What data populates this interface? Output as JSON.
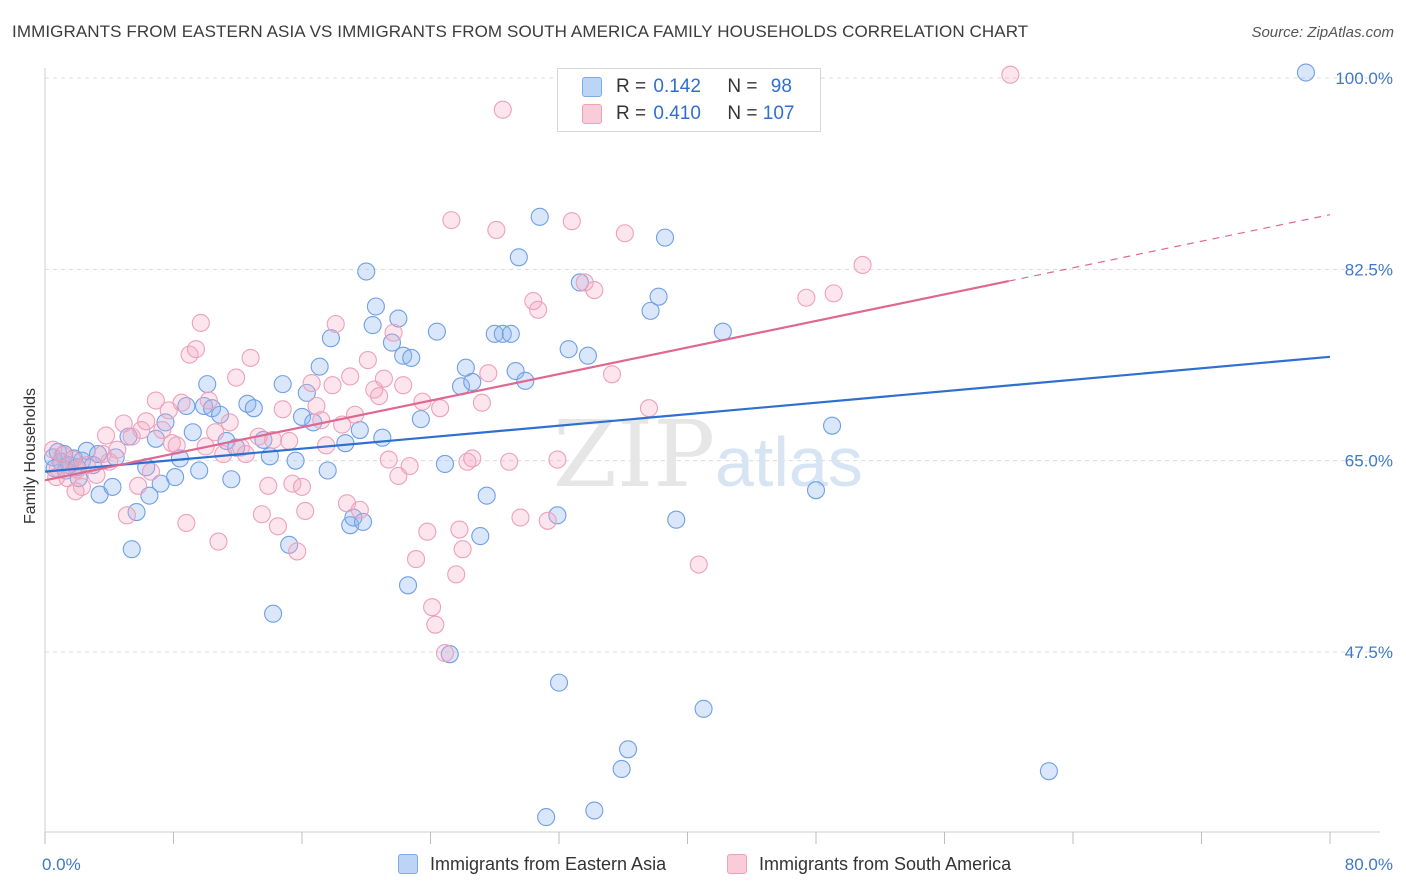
{
  "header": {
    "title": "IMMIGRANTS FROM EASTERN ASIA VS IMMIGRANTS FROM SOUTH AMERICA FAMILY HOUSEHOLDS CORRELATION CHART",
    "source": "Source: ZipAtlas.com"
  },
  "legend": {
    "rows": [
      {
        "r_label": "R =",
        "r_value": "0.142",
        "n_label": "N =",
        "n_value": "98"
      },
      {
        "r_label": "R =",
        "r_value": "0.410",
        "n_label": "N =",
        "n_value": "107"
      }
    ]
  },
  "watermark": {
    "zip": "ZIP",
    "atlas": "atlas"
  },
  "chart_data": {
    "type": "scatter",
    "ylabel": "Family Households",
    "x_tick_labels": [
      "0.0%",
      "80.0%"
    ],
    "y_tick_labels": [
      "47.5%",
      "65.0%",
      "82.5%",
      "100.0%"
    ],
    "xlim": [
      0,
      80
    ],
    "ylim": [
      31,
      100
    ],
    "y_ticks": [
      47.5,
      65.0,
      82.5,
      100.0
    ],
    "grid": true,
    "legend_position": "top-center",
    "colors": {
      "eastern_asia": "#7eaaeb",
      "south_america": "#f0a0b8",
      "eastern_asia_line": "#2f6fd0",
      "south_america_line": "#e06890"
    },
    "series": [
      {
        "name": "Immigrants from Eastern Asia",
        "key": "eastern_asia",
        "trend": {
          "x0": 0.0,
          "y0": 64.0,
          "x1": 80.0,
          "y1": 74.5,
          "dash_from": null
        },
        "points": [
          [
            0.5,
            65.3
          ],
          [
            0.8,
            65.8
          ],
          [
            1.0,
            64.9
          ],
          [
            1.2,
            65.6
          ],
          [
            1.5,
            64.6
          ],
          [
            1.8,
            65.2
          ],
          [
            2.0,
            64.4
          ],
          [
            2.3,
            65.0
          ],
          [
            2.6,
            65.9
          ],
          [
            3.0,
            64.6
          ],
          [
            3.3,
            65.6
          ],
          [
            0.6,
            64.3
          ],
          [
            1.3,
            64.1
          ],
          [
            2.1,
            63.4
          ],
          [
            3.4,
            61.9
          ],
          [
            4.2,
            62.6
          ],
          [
            4.4,
            65.3
          ],
          [
            5.2,
            67.2
          ],
          [
            5.4,
            56.9
          ],
          [
            5.7,
            60.3
          ],
          [
            6.3,
            64.4
          ],
          [
            6.5,
            61.8
          ],
          [
            6.9,
            67.0
          ],
          [
            7.2,
            62.9
          ],
          [
            7.5,
            68.5
          ],
          [
            8.1,
            63.5
          ],
          [
            8.4,
            65.2
          ],
          [
            8.8,
            70.0
          ],
          [
            9.2,
            67.6
          ],
          [
            9.6,
            64.1
          ],
          [
            9.9,
            70.0
          ],
          [
            10.1,
            72.0
          ],
          [
            10.4,
            69.8
          ],
          [
            10.9,
            69.2
          ],
          [
            11.3,
            66.8
          ],
          [
            11.6,
            63.3
          ],
          [
            11.9,
            66.2
          ],
          [
            12.6,
            70.2
          ],
          [
            13.0,
            69.8
          ],
          [
            13.6,
            66.9
          ],
          [
            14.0,
            65.4
          ],
          [
            14.2,
            51.0
          ],
          [
            14.8,
            72.0
          ],
          [
            15.2,
            57.3
          ],
          [
            15.6,
            65.0
          ],
          [
            16.0,
            69.0
          ],
          [
            16.3,
            71.2
          ],
          [
            16.7,
            68.5
          ],
          [
            17.1,
            73.6
          ],
          [
            17.6,
            64.1
          ],
          [
            17.8,
            76.2
          ],
          [
            18.7,
            66.6
          ],
          [
            19.0,
            59.1
          ],
          [
            19.2,
            59.8
          ],
          [
            19.6,
            67.8
          ],
          [
            19.8,
            59.4
          ],
          [
            20.0,
            82.3
          ],
          [
            20.4,
            77.4
          ],
          [
            20.6,
            79.1
          ],
          [
            21.0,
            67.1
          ],
          [
            21.6,
            75.8
          ],
          [
            22.0,
            78.0
          ],
          [
            22.3,
            74.6
          ],
          [
            22.6,
            53.6
          ],
          [
            22.8,
            74.4
          ],
          [
            23.4,
            68.8
          ],
          [
            24.4,
            76.8
          ],
          [
            24.9,
            64.7
          ],
          [
            25.2,
            47.3
          ],
          [
            25.9,
            71.8
          ],
          [
            26.2,
            73.5
          ],
          [
            26.6,
            72.2
          ],
          [
            27.1,
            58.1
          ],
          [
            27.5,
            61.8
          ],
          [
            28.0,
            76.6
          ],
          [
            28.5,
            76.6
          ],
          [
            29.0,
            76.6
          ],
          [
            29.3,
            73.2
          ],
          [
            29.5,
            83.6
          ],
          [
            29.9,
            72.3
          ],
          [
            30.8,
            87.3
          ],
          [
            31.2,
            32.4
          ],
          [
            31.9,
            60.0
          ],
          [
            32.0,
            44.7
          ],
          [
            32.6,
            75.2
          ],
          [
            33.3,
            81.3
          ],
          [
            33.8,
            74.6
          ],
          [
            34.2,
            33.0
          ],
          [
            35.9,
            36.8
          ],
          [
            36.3,
            38.6
          ],
          [
            37.7,
            78.7
          ],
          [
            38.2,
            80.0
          ],
          [
            38.6,
            85.4
          ],
          [
            39.3,
            59.6
          ],
          [
            41.0,
            42.3
          ],
          [
            42.2,
            76.8
          ],
          [
            48.0,
            62.3
          ],
          [
            49.0,
            68.2
          ],
          [
            62.5,
            36.6
          ],
          [
            78.5,
            100.5
          ]
        ]
      },
      {
        "name": "Immigrants from South America",
        "key": "south_america",
        "trend": {
          "x0": 0.0,
          "y0": 63.2,
          "x1": 80.0,
          "y1": 87.5,
          "dash_from": 60.0
        },
        "points": [
          [
            0.5,
            66.0
          ],
          [
            0.8,
            64.3
          ],
          [
            1.1,
            65.5
          ],
          [
            1.4,
            63.4
          ],
          [
            1.7,
            65.1
          ],
          [
            2.0,
            64.2
          ],
          [
            2.3,
            62.6
          ],
          [
            2.6,
            64.6
          ],
          [
            3.2,
            63.7
          ],
          [
            3.6,
            65.6
          ],
          [
            4.0,
            64.9
          ],
          [
            0.7,
            63.5
          ],
          [
            1.9,
            62.2
          ],
          [
            3.8,
            67.3
          ],
          [
            4.5,
            66.0
          ],
          [
            4.9,
            68.4
          ],
          [
            5.1,
            60.0
          ],
          [
            5.4,
            67.2
          ],
          [
            5.8,
            62.7
          ],
          [
            6.0,
            67.8
          ],
          [
            6.3,
            68.6
          ],
          [
            6.6,
            64.0
          ],
          [
            6.9,
            70.5
          ],
          [
            7.3,
            67.8
          ],
          [
            7.7,
            69.6
          ],
          [
            7.9,
            66.6
          ],
          [
            8.2,
            66.4
          ],
          [
            8.5,
            70.3
          ],
          [
            8.8,
            59.3
          ],
          [
            9.0,
            74.7
          ],
          [
            9.4,
            75.2
          ],
          [
            9.7,
            77.6
          ],
          [
            10.0,
            66.3
          ],
          [
            10.2,
            70.5
          ],
          [
            10.6,
            67.6
          ],
          [
            10.8,
            57.6
          ],
          [
            11.1,
            65.6
          ],
          [
            11.5,
            68.5
          ],
          [
            11.9,
            72.6
          ],
          [
            12.2,
            66.2
          ],
          [
            12.5,
            65.6
          ],
          [
            12.8,
            74.4
          ],
          [
            13.3,
            67.2
          ],
          [
            13.5,
            60.1
          ],
          [
            13.9,
            62.7
          ],
          [
            14.2,
            66.9
          ],
          [
            14.5,
            59.0
          ],
          [
            14.8,
            69.7
          ],
          [
            15.2,
            66.8
          ],
          [
            15.4,
            62.9
          ],
          [
            15.7,
            56.7
          ],
          [
            16.0,
            62.6
          ],
          [
            16.2,
            60.4
          ],
          [
            16.6,
            72.1
          ],
          [
            16.9,
            70.0
          ],
          [
            17.2,
            68.7
          ],
          [
            17.5,
            66.4
          ],
          [
            17.9,
            71.9
          ],
          [
            18.1,
            77.5
          ],
          [
            18.5,
            68.3
          ],
          [
            18.8,
            61.1
          ],
          [
            19.0,
            72.7
          ],
          [
            19.3,
            69.2
          ],
          [
            19.6,
            60.5
          ],
          [
            20.1,
            74.2
          ],
          [
            20.5,
            71.5
          ],
          [
            20.8,
            70.9
          ],
          [
            21.1,
            72.5
          ],
          [
            21.4,
            65.1
          ],
          [
            21.7,
            76.7
          ],
          [
            22.0,
            63.6
          ],
          [
            22.3,
            71.9
          ],
          [
            22.7,
            64.5
          ],
          [
            23.1,
            56.0
          ],
          [
            23.5,
            70.4
          ],
          [
            23.8,
            58.5
          ],
          [
            24.1,
            51.6
          ],
          [
            24.3,
            50.0
          ],
          [
            24.6,
            69.8
          ],
          [
            24.9,
            47.4
          ],
          [
            25.3,
            87.0
          ],
          [
            25.6,
            54.6
          ],
          [
            25.8,
            58.7
          ],
          [
            26.0,
            56.9
          ],
          [
            26.3,
            64.9
          ],
          [
            26.6,
            65.2
          ],
          [
            27.2,
            70.3
          ],
          [
            27.6,
            73.0
          ],
          [
            28.1,
            86.1
          ],
          [
            28.5,
            97.1
          ],
          [
            28.9,
            64.9
          ],
          [
            29.6,
            59.8
          ],
          [
            30.4,
            79.6
          ],
          [
            30.7,
            78.8
          ],
          [
            31.3,
            59.5
          ],
          [
            31.9,
            65.1
          ],
          [
            32.8,
            86.9
          ],
          [
            33.6,
            81.3
          ],
          [
            34.2,
            80.6
          ],
          [
            35.3,
            72.9
          ],
          [
            36.1,
            85.8
          ],
          [
            37.6,
            69.8
          ],
          [
            40.7,
            55.5
          ],
          [
            47.4,
            79.9
          ],
          [
            49.1,
            80.3
          ],
          [
            50.9,
            82.9
          ],
          [
            60.1,
            100.3
          ]
        ]
      }
    ]
  },
  "bottom_legend": {
    "items": [
      {
        "label": "Immigrants from Eastern Asia"
      },
      {
        "label": "Immigrants from South America"
      }
    ]
  }
}
